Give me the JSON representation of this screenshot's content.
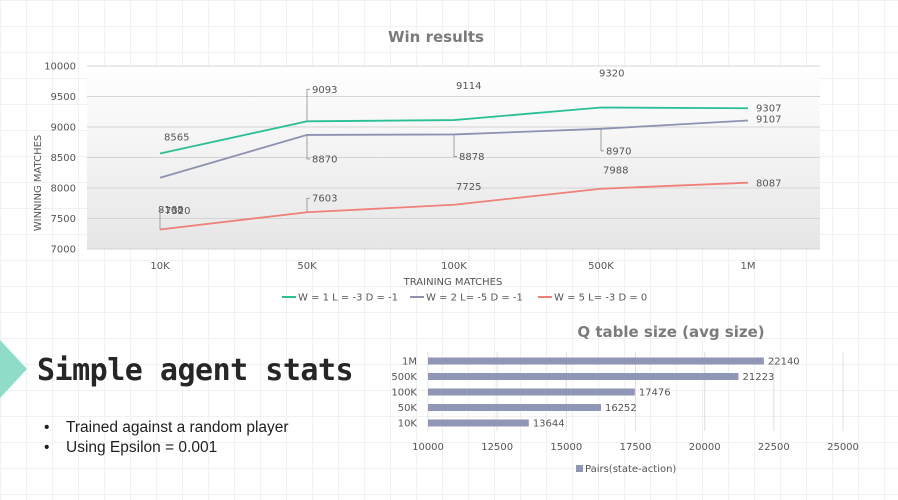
{
  "slide": {
    "section_title": "Simple agent stats",
    "bullets": [
      "Trained against a random player",
      "Using Epsilon = 0.001"
    ]
  },
  "chart_data": [
    {
      "type": "line",
      "title": "Win results",
      "xlabel": "TRAINING MATCHES",
      "ylabel": "WINNING MATCHES",
      "categories": [
        "10K",
        "50K",
        "100K",
        "500K",
        "1M"
      ],
      "ylim": [
        7000,
        10000
      ],
      "yticks": [
        "7000",
        "7500",
        "8000",
        "8500",
        "9000",
        "9500",
        "10000"
      ],
      "grid": true,
      "legend": "bottom",
      "series": [
        {
          "name": "W = 1 L = -3 D = -1",
          "color": "#2bbf95",
          "values": [
            8565,
            9093,
            9114,
            9320,
            9307
          ]
        },
        {
          "name": "W = 2 L= -5 D = -1",
          "color": "#8d92b0",
          "values": [
            8168,
            8870,
            8878,
            8970,
            9107
          ]
        },
        {
          "name": "W = 5 L= -3 D = 0",
          "color": "#f0807a",
          "values": [
            7320,
            7603,
            7725,
            7988,
            8087
          ]
        }
      ]
    },
    {
      "type": "bar",
      "orientation": "horizontal",
      "title": "Q table size (avg size)",
      "categories": [
        "1M",
        "500K",
        "100K",
        "50K",
        "10K"
      ],
      "xlim": [
        10000,
        25000
      ],
      "xticks": [
        "10000",
        "12500",
        "15000",
        "17500",
        "20000",
        "22500",
        "25000"
      ],
      "grid": true,
      "legend": "bottom",
      "series": [
        {
          "name": "Pairs(state-action)",
          "color": "#9096b5",
          "values": [
            22140,
            21223,
            17476,
            16252,
            13644
          ]
        }
      ]
    }
  ]
}
